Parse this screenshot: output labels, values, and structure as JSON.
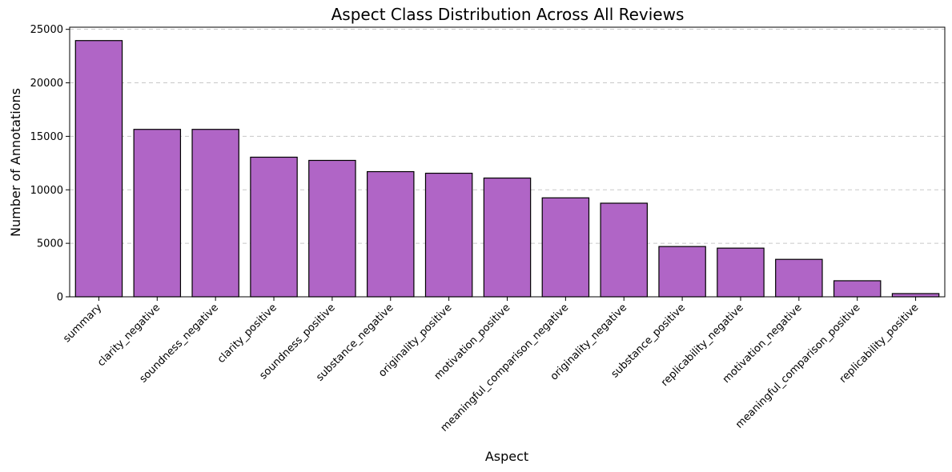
{
  "chart_data": {
    "type": "bar",
    "title": "Aspect Class Distribution Across All Reviews",
    "xlabel": "Aspect",
    "ylabel": "Number of Annotations",
    "categories": [
      "summary",
      "clarity_negative",
      "soundness_negative",
      "clarity_positive",
      "soundness_positive",
      "substance_negative",
      "originality_positive",
      "motivation_positive",
      "meaningful_comparison_negative",
      "originality_negative",
      "substance_positive",
      "replicability_negative",
      "motivation_negative",
      "meaningful_comparison_positive",
      "replicability_positive"
    ],
    "values": [
      23950,
      15650,
      15650,
      13050,
      12750,
      11700,
      11550,
      11100,
      9250,
      8750,
      4700,
      4550,
      3500,
      1500,
      300
    ],
    "ylim": [
      0,
      25200
    ],
    "yticks": [
      0,
      5000,
      10000,
      15000,
      20000,
      25000
    ],
    "ytick_labels": [
      "0",
      "5000",
      "10000",
      "15000",
      "20000",
      "25000"
    ],
    "grid": "y-dashed",
    "bar_color": "#b065c6",
    "edge_color": "#000000"
  }
}
